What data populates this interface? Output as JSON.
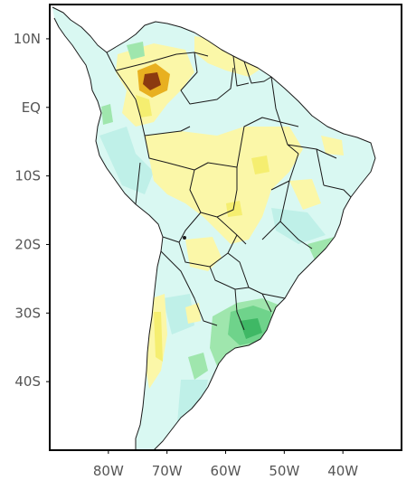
{
  "map": {
    "type": "filled-contour-map",
    "region": "South America",
    "lon_range": [
      -90,
      -30
    ],
    "lat_range": [
      -50,
      15
    ],
    "lat_ticks": [
      {
        "value": 10,
        "label": "10N"
      },
      {
        "value": 0,
        "label": "EQ"
      },
      {
        "value": -10,
        "label": "10S"
      },
      {
        "value": -20,
        "label": "20S"
      },
      {
        "value": -30,
        "label": "30S"
      },
      {
        "value": -40,
        "label": "40S"
      }
    ],
    "lon_ticks": [
      {
        "value": -80,
        "label": "80W"
      },
      {
        "value": -70,
        "label": "70W"
      },
      {
        "value": -60,
        "label": "60W"
      },
      {
        "value": -50,
        "label": "50W"
      },
      {
        "value": -40,
        "label": "40W"
      }
    ],
    "colors": {
      "land_base": "#d9f8f2",
      "light_cyan": "#bff0e8",
      "yellow": "#fbf7a8",
      "bright_yellow": "#f5ee70",
      "orange": "#e8b020",
      "brown": "#8b3a10",
      "light_green": "#9fe6ad",
      "green": "#6fd38b",
      "dark_green": "#3fb865",
      "border": "#1a1a1a",
      "frame": "#000000",
      "tick_text": "#555555"
    }
  }
}
